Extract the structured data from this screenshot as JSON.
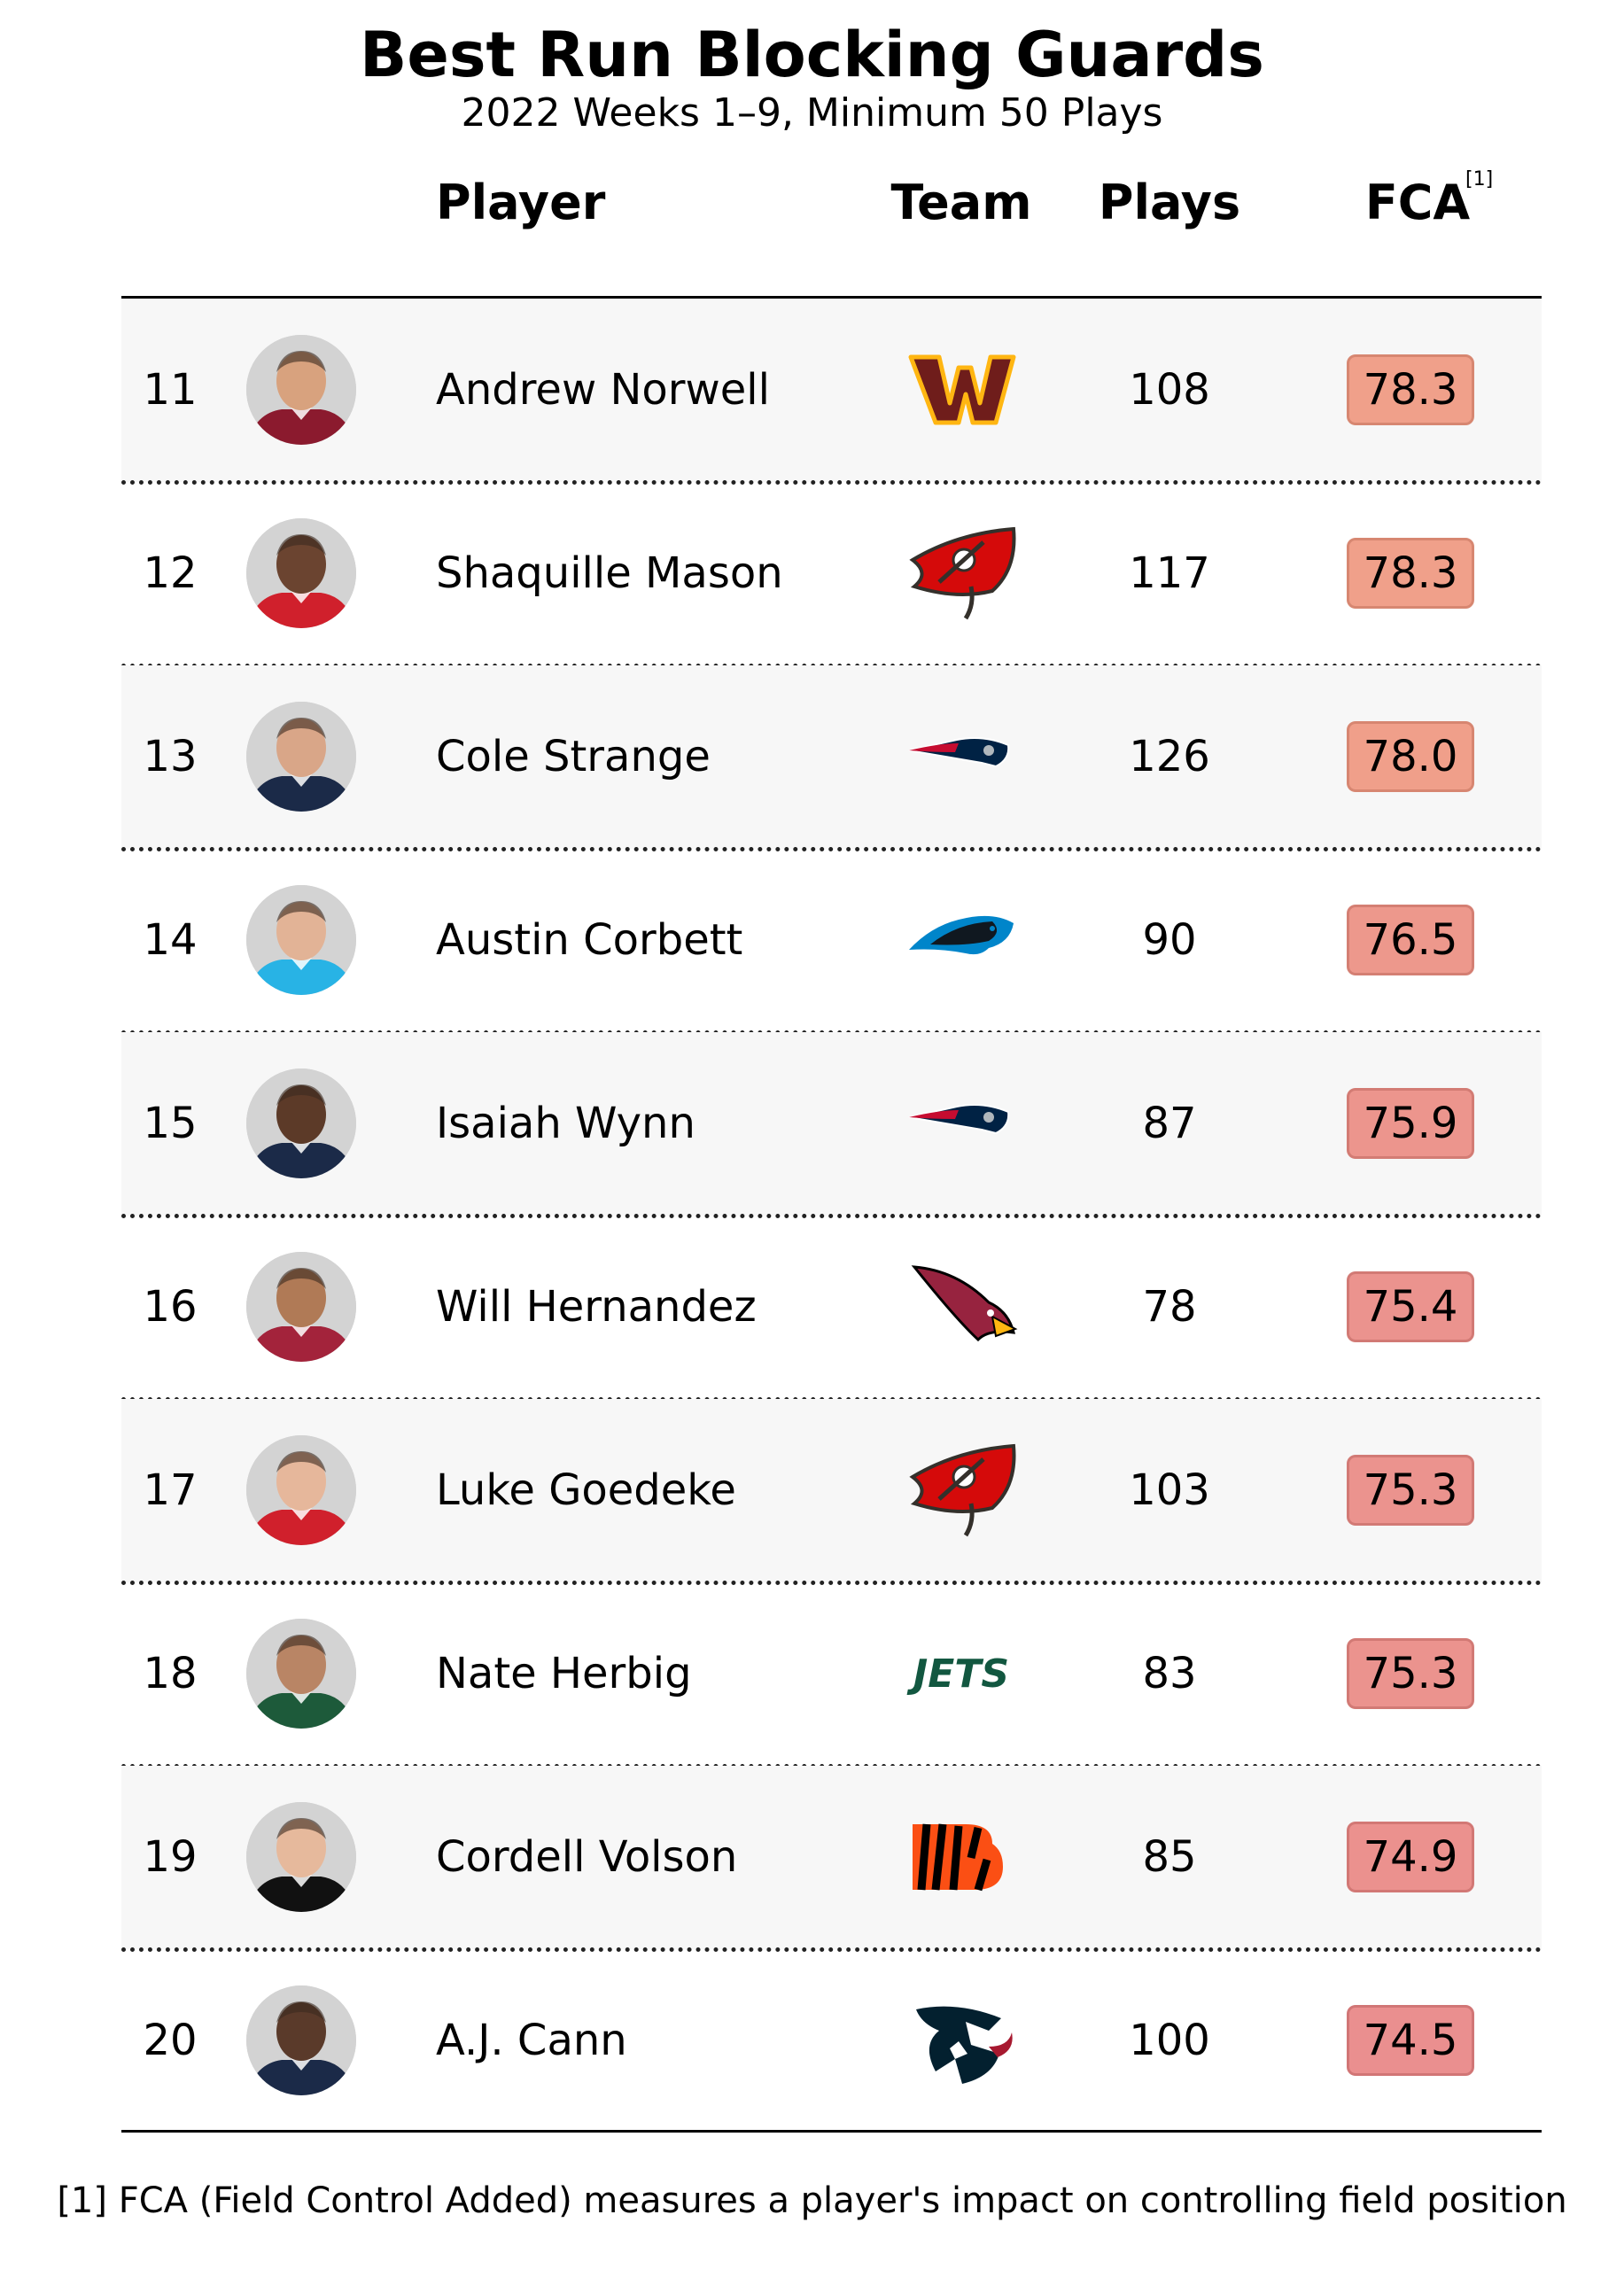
{
  "chart_data": {
    "type": "table",
    "title": "Best Run Blocking Guards",
    "subtitle": "2022 Weeks 1–9, Minimum 50 Plays",
    "columns": [
      "Player",
      "Team",
      "Plays",
      "FCA"
    ],
    "fca_footnote_mark": "[1]",
    "rows": [
      {
        "rank": "11",
        "player": "Andrew Norwell",
        "team_icon": "washington-commanders-logo",
        "plays": "108",
        "fca": "78.3"
      },
      {
        "rank": "12",
        "player": "Shaquille Mason",
        "team_icon": "tampa-bay-buccaneers-logo",
        "plays": "117",
        "fca": "78.3"
      },
      {
        "rank": "13",
        "player": "Cole Strange",
        "team_icon": "new-england-patriots-logo",
        "plays": "126",
        "fca": "78.0"
      },
      {
        "rank": "14",
        "player": "Austin Corbett",
        "team_icon": "carolina-panthers-logo",
        "plays": "90",
        "fca": "76.5"
      },
      {
        "rank": "15",
        "player": "Isaiah Wynn",
        "team_icon": "new-england-patriots-logo",
        "plays": "87",
        "fca": "75.9"
      },
      {
        "rank": "16",
        "player": "Will Hernandez",
        "team_icon": "arizona-cardinals-logo",
        "plays": "78",
        "fca": "75.4"
      },
      {
        "rank": "17",
        "player": "Luke Goedeke",
        "team_icon": "tampa-bay-buccaneers-logo",
        "plays": "103",
        "fca": "75.3"
      },
      {
        "rank": "18",
        "player": "Nate Herbig",
        "team_icon": "new-york-jets-logo",
        "plays": "83",
        "fca": "75.3"
      },
      {
        "rank": "19",
        "player": "Cordell Volson",
        "team_icon": "cincinnati-bengals-logo",
        "plays": "85",
        "fca": "74.9"
      },
      {
        "rank": "20",
        "player": "A.J. Cann",
        "team_icon": "houston-texans-logo",
        "plays": "100",
        "fca": "74.5"
      }
    ],
    "footnote": "[1] FCA (Field Control Added) measures a player's impact on controlling field position",
    "colors": {
      "fca_high": "#f0a08a",
      "fca_low": "#ea8f8f",
      "row_shade": "#f7f7f7"
    }
  }
}
